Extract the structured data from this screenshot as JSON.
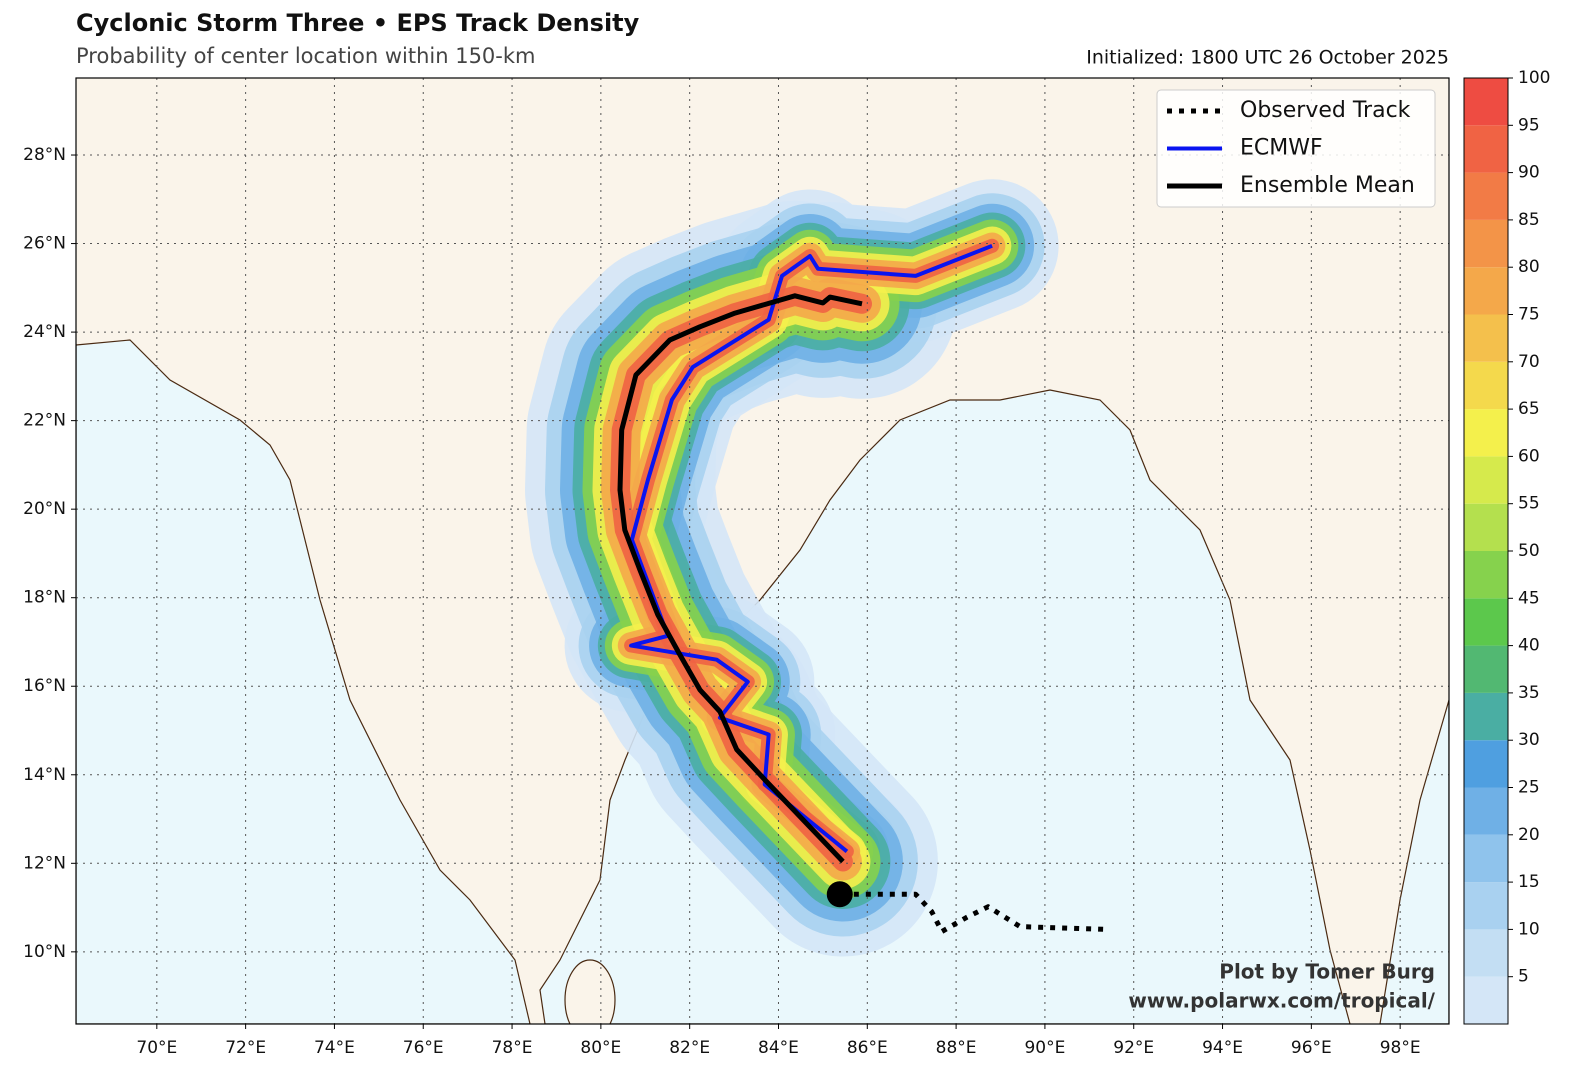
{
  "chart_data": {
    "type": "map",
    "title": "Cyclonic Storm Three • EPS Track Density",
    "subtitle": "Probability of center location within 150-km",
    "initialized": "Initialized: 1800 UTC 26 October 2025",
    "credit_name": "Plot by Tomer Burg",
    "credit_url": "www.polarwx.com/tropical/",
    "xlim": [
      68.18,
      99.1
    ],
    "ylim": [
      8.37,
      29.74
    ],
    "xticks": [
      {
        "value": 70,
        "label": "70°E"
      },
      {
        "value": 72,
        "label": "72°E"
      },
      {
        "value": 74,
        "label": "74°E"
      },
      {
        "value": 76,
        "label": "76°E"
      },
      {
        "value": 78,
        "label": "78°E"
      },
      {
        "value": 80,
        "label": "80°E"
      },
      {
        "value": 82,
        "label": "82°E"
      },
      {
        "value": 84,
        "label": "84°E"
      },
      {
        "value": 86,
        "label": "86°E"
      },
      {
        "value": 88,
        "label": "88°E"
      },
      {
        "value": 90,
        "label": "90°E"
      },
      {
        "value": 92,
        "label": "92°E"
      },
      {
        "value": 94,
        "label": "94°E"
      },
      {
        "value": 96,
        "label": "96°E"
      },
      {
        "value": 98,
        "label": "98°E"
      }
    ],
    "yticks": [
      {
        "value": 10,
        "label": "10°N"
      },
      {
        "value": 12,
        "label": "12°N"
      },
      {
        "value": 14,
        "label": "14°N"
      },
      {
        "value": 16,
        "label": "16°N"
      },
      {
        "value": 18,
        "label": "18°N"
      },
      {
        "value": 20,
        "label": "20°N"
      },
      {
        "value": 22,
        "label": "22°N"
      },
      {
        "value": 24,
        "label": "24°N"
      },
      {
        "value": 26,
        "label": "26°N"
      },
      {
        "value": 28,
        "label": "28°N"
      }
    ],
    "grid": true,
    "legend": "upper right",
    "series": [
      {
        "name": "Observed Track",
        "color": "#000000",
        "style": "dotted",
        "x": [
          91.31,
          89.44,
          88.72,
          88.24,
          87.68,
          87.45,
          87.09,
          85.38
        ],
        "y": [
          10.51,
          10.57,
          11.02,
          10.78,
          10.46,
          10.91,
          11.3,
          11.3
        ]
      },
      {
        "name": "ECMWF",
        "color": "#0a14f0",
        "style": "solid",
        "x": [
          85.54,
          83.69,
          83.78,
          82.68,
          83.31,
          82.61,
          80.68,
          81.51,
          80.7,
          81.06,
          81.6,
          82.07,
          83.78,
          84.08,
          84.71,
          84.89,
          87.09,
          88.81
        ],
        "y": [
          12.27,
          13.78,
          14.91,
          15.29,
          16.1,
          16.6,
          16.92,
          17.14,
          19.31,
          20.66,
          22.47,
          23.21,
          24.28,
          25.27,
          25.72,
          25.43,
          25.27,
          25.95
        ]
      },
      {
        "name": "Ensemble Mean",
        "color": "#000000",
        "style": "thick",
        "x": [
          85.45,
          83.69,
          83.06,
          82.68,
          82.23,
          81.78,
          81.28,
          80.88,
          80.54,
          80.43,
          80.47,
          80.79,
          81.55,
          82.23,
          83.02,
          84.37,
          85.0,
          85.16,
          85.88
        ],
        "y": [
          12.04,
          13.89,
          14.57,
          15.43,
          15.92,
          16.71,
          17.62,
          18.63,
          19.53,
          20.43,
          21.79,
          23.03,
          23.82,
          24.12,
          24.43,
          24.82,
          24.66,
          24.79,
          24.64
        ]
      }
    ],
    "colorbar": {
      "range": [
        0,
        100
      ],
      "ticks": [
        5,
        10,
        15,
        20,
        25,
        30,
        35,
        40,
        45,
        50,
        55,
        60,
        65,
        70,
        75,
        80,
        85,
        90,
        95,
        100
      ],
      "colors": [
        "#d4e6f7",
        "#c3def3",
        "#a9d1f0",
        "#8fc3ec",
        "#6fb0e6",
        "#4f9fe0",
        "#4aaea3",
        "#52b872",
        "#5cc84c",
        "#86d24d",
        "#b4e04e",
        "#d6ea4c",
        "#f4f04c",
        "#f4d94c",
        "#f4c04c",
        "#f4a84a",
        "#f39448",
        "#f27b46",
        "#f06344",
        "#ee4c42"
      ]
    }
  }
}
